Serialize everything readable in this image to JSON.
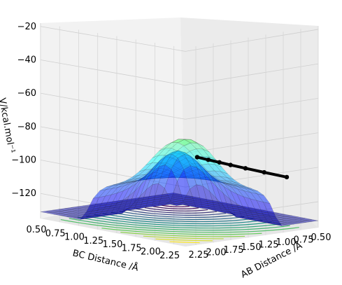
{
  "chart_data": {
    "type": "surface3d",
    "title": "",
    "xlabel": "AB Distance /Å",
    "ylabel": "BC Distance /Å",
    "zlabel": "V/kcal.mol⁻¹",
    "xlim": [
      0.5,
      2.4
    ],
    "ylim": [
      0.5,
      2.4
    ],
    "zlim": [
      -135,
      -18
    ],
    "x_ticks": [
      "0.50",
      "0.75",
      "1.00",
      "1.25",
      "1.50",
      "1.75",
      "2.00",
      "2.25"
    ],
    "y_ticks": [
      "0.50",
      "0.75",
      "1.00",
      "1.25",
      "1.50",
      "1.75",
      "2.00",
      "2.25"
    ],
    "z_ticks": [
      "−20",
      "−40",
      "−60",
      "−80",
      "−100",
      "−120"
    ],
    "z_tick_values": [
      -20,
      -40,
      -60,
      -80,
      -100,
      -120
    ],
    "colormap": "jet",
    "contour_colormap": "viridis",
    "grid": true,
    "trajectory": {
      "color": "#000000",
      "points": [
        {
          "ab": 0.95,
          "bc": 2.4,
          "v": -103
        },
        {
          "ab": 1.0,
          "bc": 2.15,
          "v": -102
        },
        {
          "ab": 1.05,
          "bc": 1.95,
          "v": -101
        },
        {
          "ab": 1.1,
          "bc": 1.8,
          "v": -100
        },
        {
          "ab": 1.15,
          "bc": 1.7,
          "v": -99
        },
        {
          "ab": 1.2,
          "bc": 1.6,
          "v": -98
        },
        {
          "ab": 1.25,
          "bc": 1.5,
          "v": -97
        }
      ]
    }
  }
}
